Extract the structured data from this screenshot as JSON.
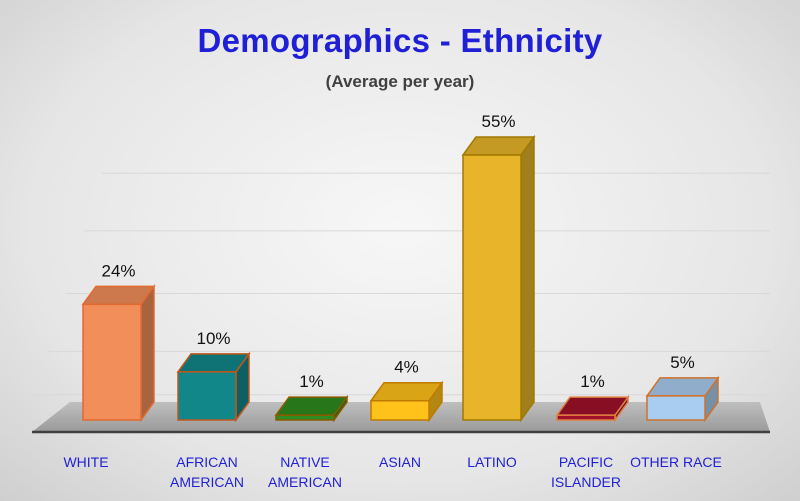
{
  "chart_data": {
    "type": "bar",
    "title": "Demographics - Ethnicity",
    "subtitle": "(Average per year)",
    "categories": [
      [
        "WHITE"
      ],
      [
        "AFRICAN",
        "AMERICAN"
      ],
      [
        "NATIVE",
        "AMERICAN"
      ],
      [
        "ASIAN"
      ],
      [
        "LATINO"
      ],
      [
        "PACIFIC",
        "ISLANDER"
      ],
      [
        "OTHER RACE"
      ]
    ],
    "values": [
      24,
      10,
      1,
      4,
      55,
      1,
      5
    ],
    "value_labels": [
      "24%",
      "10%",
      "1%",
      "4%",
      "55%",
      "1%",
      "5%"
    ],
    "unit": "%",
    "colors": [
      "#f28e5a",
      "#12878a",
      "#2e8b1f",
      "#ffc21a",
      "#e8b52a",
      "#a0102a",
      "#a9cdf0"
    ],
    "edge_colors": [
      "#e06a30",
      "#c0571b",
      "#8a5a00",
      "#c07a00",
      "#a07a00",
      "#e08040",
      "#d0722a"
    ],
    "ylim": [
      0,
      60
    ],
    "grid": true,
    "legend": "none"
  }
}
